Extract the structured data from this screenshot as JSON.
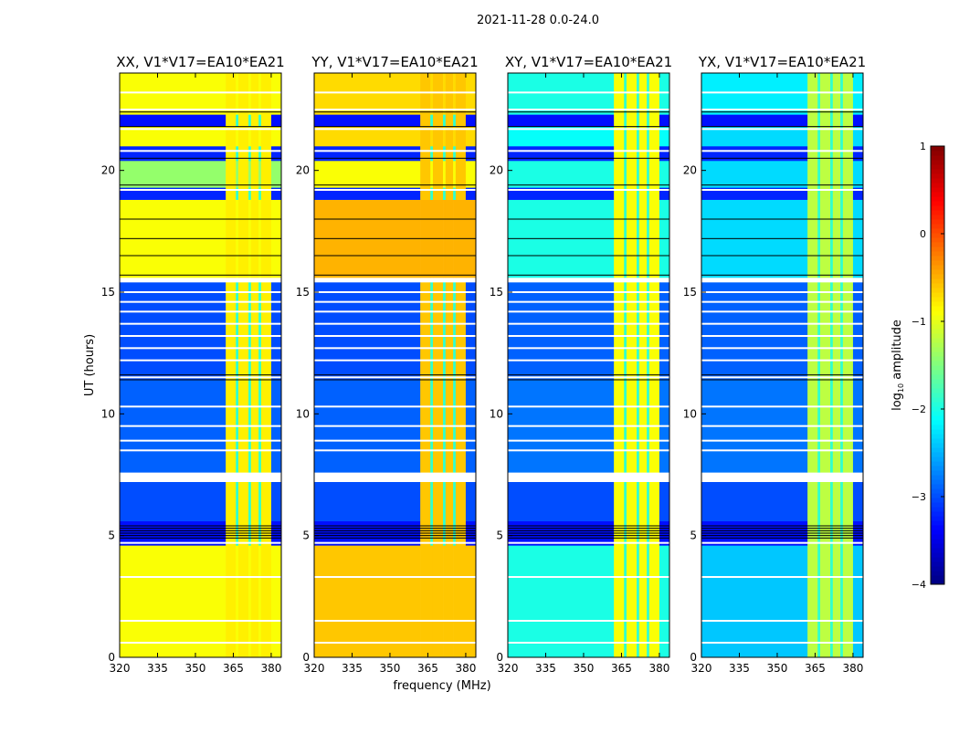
{
  "chart_data": {
    "type": "heatmap",
    "title": "2021-11-28 0.0-24.0",
    "xlabel": "frequency (MHz)",
    "ylabel": "UT (hours)",
    "xlim": [
      320,
      384
    ],
    "ylim": [
      0,
      24
    ],
    "xticks": [
      320,
      335,
      350,
      365,
      380
    ],
    "yticks": [
      0,
      5,
      10,
      15,
      20
    ],
    "colorbar": {
      "label_base": "log",
      "label_sub": "10",
      "label_rest": " amplitude",
      "range": [
        -4,
        1
      ],
      "ticks": [
        1,
        0,
        -1,
        -2,
        -3,
        -4
      ],
      "colormap": "jet"
    },
    "panels": [
      {
        "title": "XX, V1*V17=EA10*EA21",
        "key": "XX",
        "rfi": -0.8
      },
      {
        "title": "YY, V1*V17=EA10*EA21",
        "key": "YY",
        "rfi": -0.6
      },
      {
        "title": "XY, V1*V17=EA10*EA21",
        "key": "XY",
        "rfi": -0.9
      },
      {
        "title": "YX, V1*V17=EA10*EA21",
        "key": "YX",
        "rfi": -1.2
      }
    ],
    "freq_bins": [
      [
        320,
        362,
        "base"
      ],
      [
        362,
        366,
        "rfi"
      ],
      [
        366,
        367,
        "gap"
      ],
      [
        367,
        371,
        "rfi"
      ],
      [
        371,
        372,
        "gap"
      ],
      [
        372,
        375,
        "rfi"
      ],
      [
        375,
        376,
        "gap"
      ],
      [
        376,
        380,
        "rfi"
      ],
      [
        380,
        384,
        "base"
      ]
    ],
    "time_rows": [
      {
        "t": [
          0,
          4.6
        ],
        "XX": -0.9,
        "YY": -0.6,
        "XY": -2.0,
        "YX": -2.4
      },
      {
        "t": [
          4.6,
          5.6
        ],
        "XX": -3.3,
        "YY": -3.3,
        "XY": -3.3,
        "YX": -3.3
      },
      {
        "t": [
          5.6,
          7.2
        ],
        "XX": -3.0,
        "YY": -3.0,
        "XY": -3.0,
        "YX": -3.0
      },
      {
        "t": [
          7.6,
          11.4
        ],
        "XX": -2.9,
        "YY": -2.9,
        "XY": -2.8,
        "YX": -2.8
      },
      {
        "t": [
          11.4,
          15.4
        ],
        "XX": -3.0,
        "YY": -3.0,
        "XY": -2.9,
        "YX": -2.9
      },
      {
        "t": [
          15.6,
          18.8
        ],
        "XX": -0.9,
        "YY": -0.5,
        "XY": -2.0,
        "YX": -2.3
      },
      {
        "t": [
          18.8,
          19.3
        ],
        "XX": -3.2,
        "YY": -3.2,
        "XY": -3.2,
        "YX": -3.2
      },
      {
        "t": [
          19.3,
          20.4
        ],
        "XX": -1.4,
        "YY": -0.9,
        "XY": -2.0,
        "YX": -2.3
      },
      {
        "t": [
          20.4,
          21.0
        ],
        "XX": -3.2,
        "YY": -3.2,
        "XY": -3.2,
        "YX": -3.2
      },
      {
        "t": [
          21.0,
          21.8
        ],
        "XX": -0.9,
        "YY": -0.7,
        "XY": -2.1,
        "YX": -2.3
      },
      {
        "t": [
          21.8,
          22.3
        ],
        "XX": -3.3,
        "YY": -3.3,
        "XY": -3.3,
        "YX": -3.3
      },
      {
        "t": [
          22.3,
          24.0
        ],
        "XX": -0.9,
        "YY": -0.7,
        "XY": -2.0,
        "YX": -2.2
      }
    ],
    "flagged_white_times": [
      0.6,
      1.5,
      3.3,
      4.7,
      7.3,
      7.45,
      8.5,
      8.9,
      9.5,
      10.3,
      11.5,
      12.2,
      12.7,
      13.2,
      13.7,
      14.2,
      14.6,
      15.0,
      15.5,
      19.2,
      20.8,
      21.7,
      22.5,
      23.2
    ],
    "black_line_times": [
      4.9,
      5.0,
      5.1,
      5.2,
      5.3,
      5.4,
      11.4,
      11.6,
      15.7,
      16.5,
      17.2,
      18.0,
      19.4,
      20.5,
      21.8,
      22.4
    ]
  }
}
